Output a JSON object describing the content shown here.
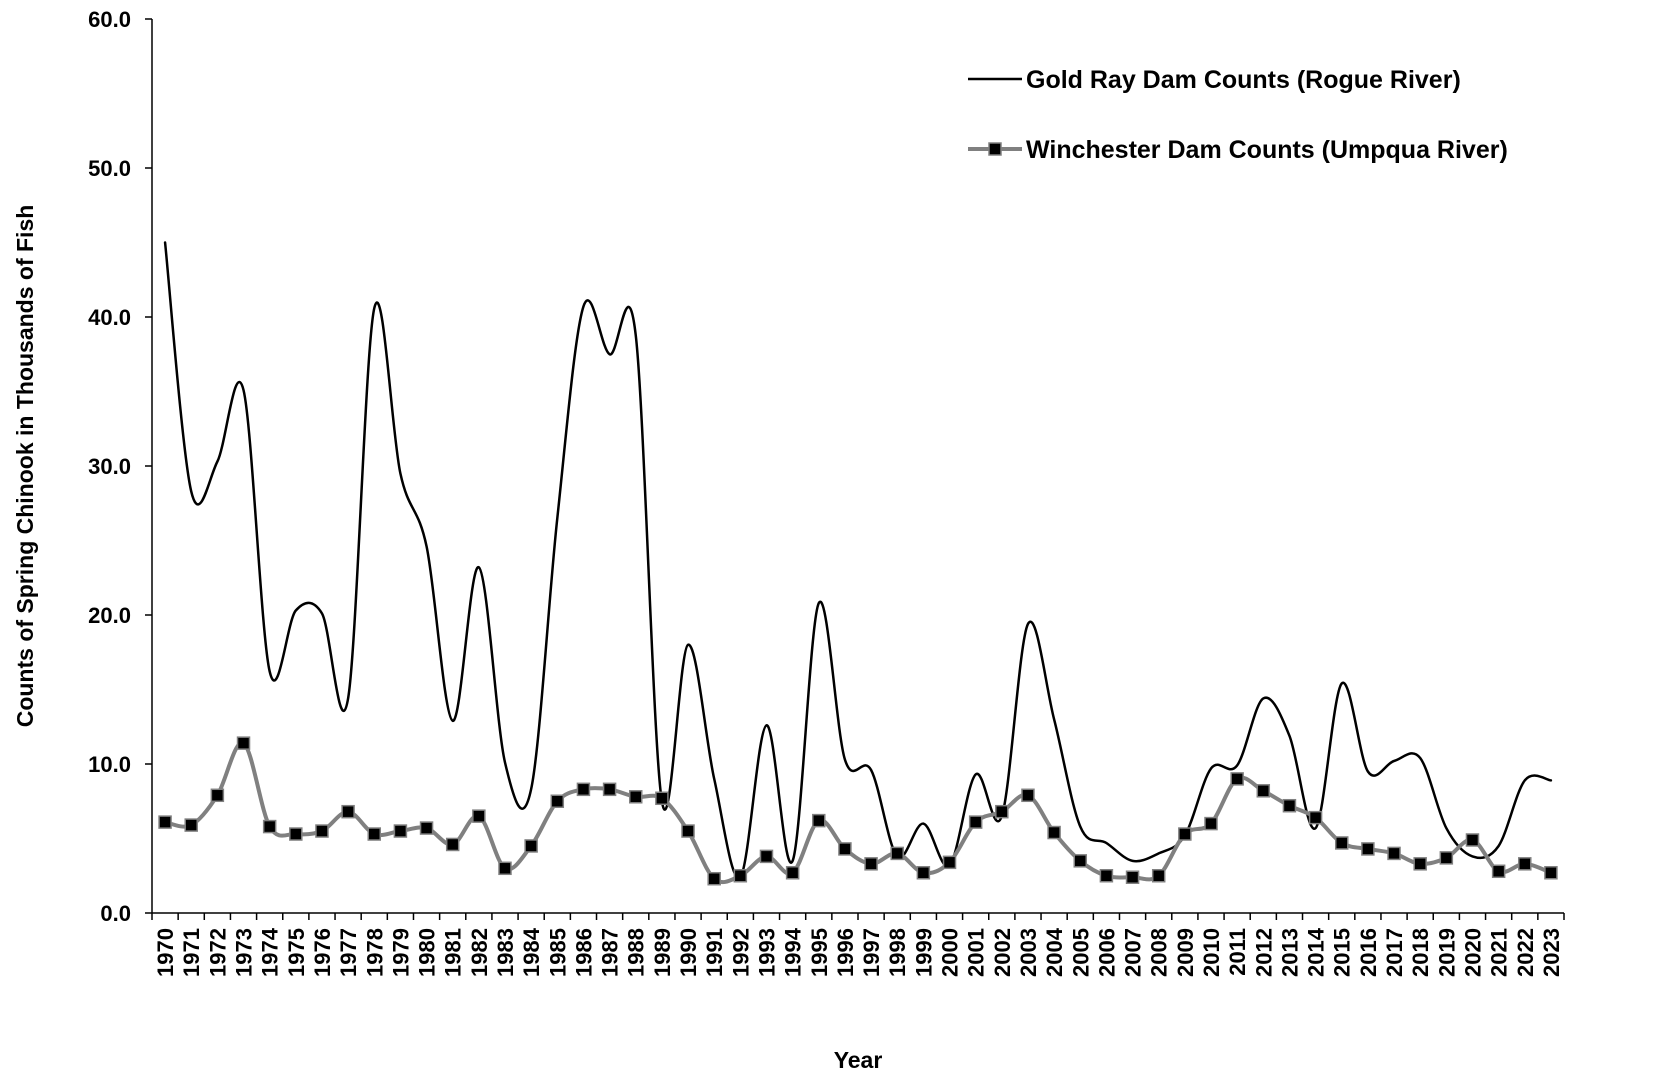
{
  "chart_data": {
    "type": "line",
    "title": "",
    "xlabel": "Year",
    "ylabel": "Counts of Spring Chinook in Thousands of Fish",
    "ylim": [
      0,
      60
    ],
    "yticks": [
      "0.0",
      "10.0",
      "20.0",
      "30.0",
      "40.0",
      "50.0",
      "60.0"
    ],
    "grid": false,
    "legend_position": "top-right",
    "categories": [
      "1970",
      "1971",
      "1972",
      "1973",
      "1974",
      "1975",
      "1976",
      "1977",
      "1978",
      "1979",
      "1980",
      "1981",
      "1982",
      "1983",
      "1984",
      "1985",
      "1986",
      "1987",
      "1988",
      "1989",
      "1990",
      "1991",
      "1992",
      "1993",
      "1994",
      "1995",
      "1996",
      "1997",
      "1998",
      "1999",
      "2000",
      "2001",
      "2002",
      "2003",
      "2004",
      "2005",
      "2006",
      "2007",
      "2008",
      "2009",
      "2010",
      "2011",
      "2012",
      "2013",
      "2014",
      "2015",
      "2016",
      "2017",
      "2018",
      "2019",
      "2020",
      "2021",
      "2022",
      "2023"
    ],
    "series": [
      {
        "name": "Gold Ray Dam Counts (Rogue River)",
        "color": "#000000",
        "marker": "none",
        "values": [
          45.0,
          28.3,
          30.3,
          35.1,
          16.2,
          20.3,
          20.1,
          14.4,
          40.6,
          29.5,
          24.6,
          12.9,
          23.2,
          10.1,
          8.3,
          26.5,
          40.7,
          37.5,
          38.8,
          7.5,
          18.0,
          9.0,
          2.4,
          12.6,
          3.5,
          20.8,
          10.3,
          9.6,
          3.8,
          6.0,
          3.2,
          9.3,
          6.5,
          19.4,
          13.0,
          5.8,
          4.7,
          3.5,
          4.0,
          5.2,
          9.7,
          9.9,
          14.4,
          11.9,
          5.7,
          15.4,
          9.5,
          10.2,
          10.4,
          5.7,
          3.8,
          4.5,
          8.9,
          8.9
        ]
      },
      {
        "name": "Winchester Dam Counts (Umpqua River)",
        "color": "#808080",
        "marker": "square",
        "values": [
          6.1,
          5.9,
          7.9,
          11.4,
          5.8,
          5.3,
          5.5,
          6.8,
          5.3,
          5.5,
          5.7,
          4.6,
          6.5,
          3.0,
          4.5,
          7.5,
          8.3,
          8.3,
          7.8,
          7.7,
          5.5,
          2.3,
          2.5,
          3.8,
          2.7,
          6.2,
          4.3,
          3.3,
          4.0,
          2.7,
          3.4,
          6.1,
          6.8,
          7.9,
          5.4,
          3.5,
          2.5,
          2.4,
          2.5,
          5.3,
          6.0,
          9.0,
          8.2,
          7.2,
          6.4,
          4.7,
          4.3,
          4.0,
          3.3,
          3.7,
          4.9,
          2.8,
          3.3,
          2.7
        ]
      }
    ]
  }
}
